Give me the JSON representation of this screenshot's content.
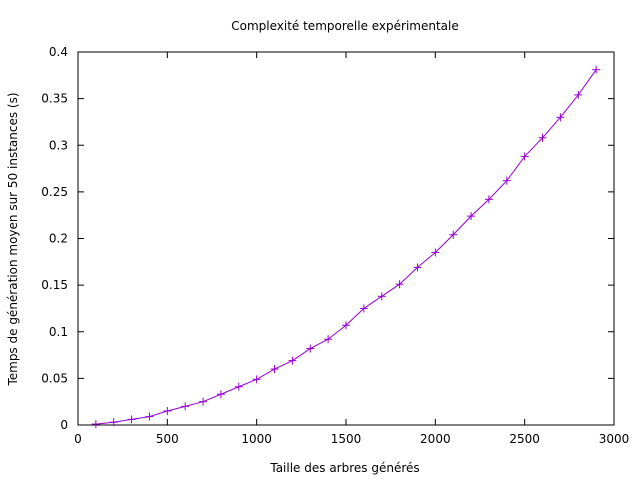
{
  "chart_data": {
    "type": "line",
    "title": "Complexité temporelle expérimentale",
    "xlabel": "Taille des arbres générés",
    "ylabel": "Temps de génération moyen sur 50 instances (s)",
    "xlim": [
      0,
      3000
    ],
    "ylim": [
      0,
      0.4
    ],
    "x_ticks": [
      0,
      500,
      1000,
      1500,
      2000,
      2500,
      3000
    ],
    "x_tick_labels": [
      "0",
      "500",
      "1000",
      "1500",
      "2000",
      "2500",
      "3000"
    ],
    "y_ticks": [
      0,
      0.05,
      0.1,
      0.15,
      0.2,
      0.25,
      0.3,
      0.35,
      0.4
    ],
    "y_tick_labels": [
      "0",
      "0.05",
      "0.1",
      "0.15",
      "0.2",
      "0.25",
      "0.3",
      "0.35",
      "0.4"
    ],
    "grid": false,
    "legend": "none",
    "series": [
      {
        "color": "#9400d3",
        "marker": "plus",
        "x": [
          100,
          200,
          300,
          400,
          500,
          600,
          700,
          800,
          900,
          1000,
          1100,
          1200,
          1300,
          1400,
          1500,
          1600,
          1700,
          1800,
          1900,
          2000,
          2100,
          2200,
          2300,
          2400,
          2500,
          2600,
          2700,
          2800,
          2900
        ],
        "y": [
          0.001,
          0.003,
          0.006,
          0.009,
          0.015,
          0.02,
          0.025,
          0.033,
          0.041,
          0.049,
          0.06,
          0.069,
          0.082,
          0.092,
          0.107,
          0.125,
          0.138,
          0.151,
          0.169,
          0.185,
          0.204,
          0.224,
          0.242,
          0.262,
          0.288,
          0.308,
          0.33,
          0.354,
          0.381
        ]
      }
    ]
  }
}
